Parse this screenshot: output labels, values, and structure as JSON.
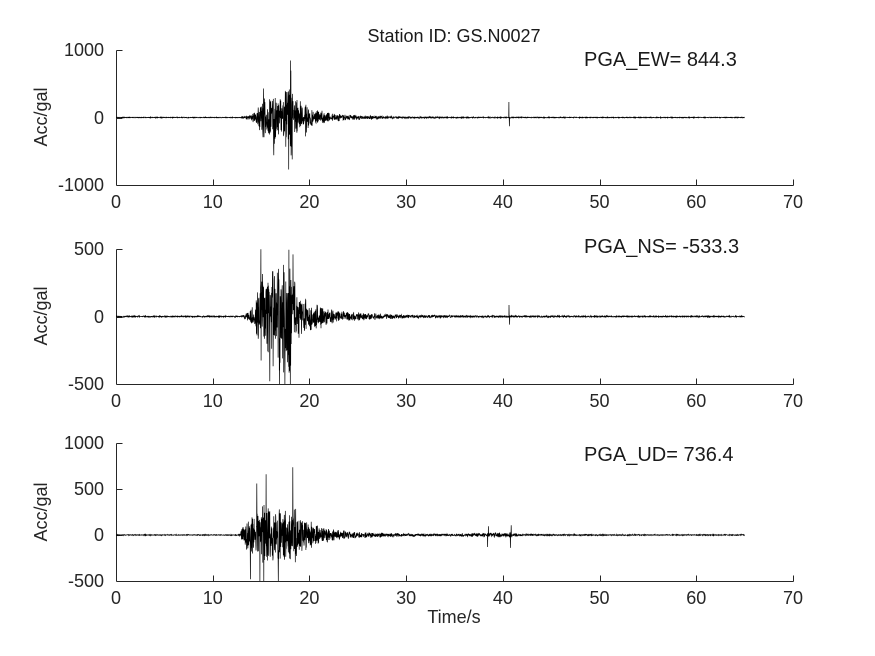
{
  "figure": {
    "title": "Station ID: GS.N0027",
    "xlabel": "Time/s",
    "ylabel": "Acc/gal",
    "background": "#ffffff",
    "axis_color": "#262626",
    "text_color": "#1a1a1a",
    "trace_color": "#000000"
  },
  "chart_data": [
    {
      "type": "line",
      "name": "EW",
      "annotation": "PGA_EW= 844.3",
      "pga": 844.3,
      "ylabel": "Acc/gal",
      "xlim": [
        0,
        70
      ],
      "ylim": [
        -1000,
        1000
      ],
      "xticks": [
        0,
        10,
        20,
        30,
        40,
        50,
        60,
        70
      ],
      "yticks": [
        -1000,
        0,
        1000
      ],
      "grid": false,
      "legend": "none",
      "seed": 11,
      "signal": {
        "duration": 65,
        "onset": 13,
        "noise_floor": 6,
        "envelope": [
          [
            0,
            6
          ],
          [
            12.9,
            6
          ],
          [
            13.1,
            20
          ],
          [
            13.6,
            35
          ],
          [
            14.2,
            70
          ],
          [
            14.7,
            150
          ],
          [
            15.0,
            300
          ],
          [
            15.3,
            380
          ],
          [
            15.7,
            260
          ],
          [
            16.0,
            340
          ],
          [
            16.3,
            460
          ],
          [
            16.7,
            300
          ],
          [
            17.0,
            280
          ],
          [
            17.4,
            380
          ],
          [
            17.7,
            560
          ],
          [
            18.0,
            780
          ],
          [
            18.2,
            640
          ],
          [
            18.5,
            380
          ],
          [
            18.9,
            300
          ],
          [
            19.3,
            200
          ],
          [
            19.7,
            230
          ],
          [
            20.1,
            150
          ],
          [
            20.6,
            100
          ],
          [
            21.2,
            120
          ],
          [
            21.8,
            80
          ],
          [
            22.5,
            60
          ],
          [
            23.5,
            48
          ],
          [
            25,
            35
          ],
          [
            27,
            25
          ],
          [
            29,
            18
          ],
          [
            31,
            14
          ],
          [
            34,
            11
          ],
          [
            38,
            9
          ],
          [
            42,
            8
          ],
          [
            47,
            7
          ],
          [
            52,
            6
          ],
          [
            58,
            6
          ],
          [
            65,
            6
          ]
        ],
        "peaks": [
          [
            18.04,
            844.3
          ],
          [
            17.86,
            -770
          ],
          [
            16.32,
            -560
          ],
          [
            18.22,
            -620
          ],
          [
            15.25,
            430
          ],
          [
            19.6,
            -280
          ],
          [
            40.62,
            230
          ],
          [
            40.68,
            -130
          ]
        ]
      }
    },
    {
      "type": "line",
      "name": "NS",
      "annotation": "PGA_NS= -533.3",
      "pga": -533.3,
      "ylabel": "Acc/gal",
      "xlim": [
        0,
        70
      ],
      "ylim": [
        -500,
        500
      ],
      "xticks": [
        0,
        10,
        20,
        30,
        40,
        50,
        60,
        70
      ],
      "yticks": [
        -500,
        0,
        500
      ],
      "grid": false,
      "legend": "none",
      "seed": 22,
      "signal": {
        "duration": 65,
        "onset": 13,
        "noise_floor": 5,
        "envelope": [
          [
            0,
            5
          ],
          [
            12.9,
            5
          ],
          [
            13.2,
            20
          ],
          [
            13.8,
            45
          ],
          [
            14.3,
            90
          ],
          [
            14.7,
            220
          ],
          [
            15.0,
            430
          ],
          [
            15.3,
            300
          ],
          [
            15.7,
            280
          ],
          [
            16.1,
            360
          ],
          [
            16.5,
            430
          ],
          [
            16.9,
            470
          ],
          [
            17.3,
            450
          ],
          [
            17.7,
            480
          ],
          [
            18.1,
            430
          ],
          [
            18.5,
            280
          ],
          [
            18.9,
            200
          ],
          [
            19.4,
            150
          ],
          [
            19.9,
            110
          ],
          [
            20.5,
            90
          ],
          [
            21.1,
            100
          ],
          [
            21.7,
            70
          ],
          [
            22.4,
            55
          ],
          [
            23.4,
            42
          ],
          [
            25,
            32
          ],
          [
            27,
            24
          ],
          [
            29,
            17
          ],
          [
            31,
            13
          ],
          [
            34,
            10
          ],
          [
            38,
            8
          ],
          [
            42,
            7
          ],
          [
            47,
            6
          ],
          [
            52,
            5
          ],
          [
            58,
            5
          ],
          [
            65,
            5
          ]
        ],
        "peaks": [
          [
            17.46,
            -533.3
          ],
          [
            16.92,
            -515
          ],
          [
            18.02,
            -520
          ],
          [
            14.98,
            498
          ],
          [
            17.88,
            495
          ],
          [
            15.9,
            -480
          ],
          [
            18.3,
            460
          ],
          [
            40.64,
            85
          ],
          [
            40.7,
            -60
          ]
        ]
      }
    },
    {
      "type": "line",
      "name": "UD",
      "annotation": "PGA_UD= 736.4",
      "pga": 736.4,
      "ylabel": "Acc/gal",
      "xlabel": "Time/s",
      "xlim": [
        0,
        70
      ],
      "ylim": [
        -500,
        1000
      ],
      "xticks": [
        0,
        10,
        20,
        30,
        40,
        50,
        60,
        70
      ],
      "yticks": [
        -500,
        0,
        500,
        1000
      ],
      "grid": false,
      "legend": "none",
      "seed": 33,
      "signal": {
        "duration": 65,
        "onset": 12.8,
        "noise_floor": 5,
        "envelope": [
          [
            0,
            5
          ],
          [
            12.6,
            5
          ],
          [
            12.9,
            35
          ],
          [
            13.2,
            120
          ],
          [
            13.6,
            200
          ],
          [
            14.0,
            240
          ],
          [
            14.5,
            270
          ],
          [
            15.0,
            310
          ],
          [
            15.5,
            380
          ],
          [
            16.0,
            300
          ],
          [
            16.5,
            330
          ],
          [
            17.0,
            290
          ],
          [
            17.5,
            300
          ],
          [
            18.0,
            260
          ],
          [
            18.4,
            330
          ],
          [
            18.8,
            240
          ],
          [
            19.3,
            200
          ],
          [
            19.8,
            170
          ],
          [
            20.3,
            150
          ],
          [
            20.9,
            120
          ],
          [
            21.5,
            95
          ],
          [
            22.2,
            70
          ],
          [
            23.0,
            55
          ],
          [
            24,
            45
          ],
          [
            25,
            38
          ],
          [
            26,
            32
          ],
          [
            28,
            24
          ],
          [
            30,
            18
          ],
          [
            32,
            15
          ],
          [
            35,
            12
          ],
          [
            38,
            25
          ],
          [
            39,
            30
          ],
          [
            40,
            25
          ],
          [
            41,
            30
          ],
          [
            41.6,
            12
          ],
          [
            44,
            9
          ],
          [
            48,
            8
          ],
          [
            52,
            7
          ],
          [
            57,
            6
          ],
          [
            65,
            6
          ]
        ],
        "peaks": [
          [
            18.28,
            736.4
          ],
          [
            15.52,
            660
          ],
          [
            14.88,
            -560
          ],
          [
            15.28,
            -530
          ],
          [
            16.78,
            -545
          ],
          [
            14.55,
            560
          ],
          [
            13.9,
            -480
          ],
          [
            38.42,
            -130
          ],
          [
            38.5,
            95
          ],
          [
            40.78,
            -140
          ],
          [
            40.86,
            105
          ]
        ]
      }
    }
  ]
}
